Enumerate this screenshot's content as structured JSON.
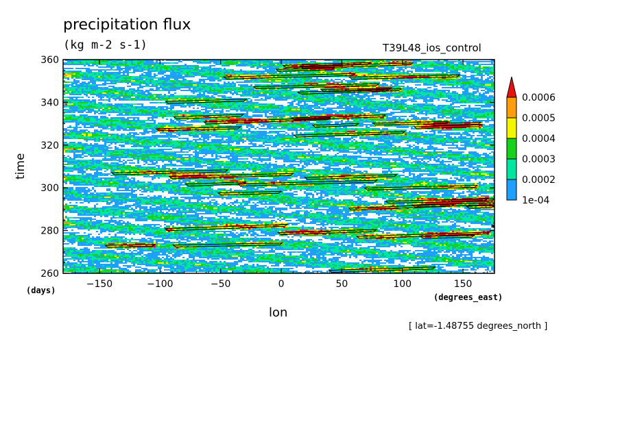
{
  "chart_data": {
    "type": "heatmap",
    "title": "precipitation flux",
    "units": "(kg m-2 s-1)",
    "run_label": "T39L48_ios_control",
    "xlabel": "lon",
    "x_units": "(degrees_east)",
    "ylabel": "time",
    "y_units": "(days)",
    "annotation": "[ lat=-1.48755 degrees_north ]",
    "xlim": [
      -180,
      176
    ],
    "ylim": [
      260,
      360
    ],
    "x_ticks": [
      -150,
      -100,
      -50,
      0,
      50,
      100,
      150
    ],
    "y_ticks": [
      260,
      280,
      300,
      320,
      340,
      360
    ],
    "colorbar": {
      "levels": [
        "1e-04",
        "0.0002",
        "0.0003",
        "0.0004",
        "0.0005",
        "0.0006"
      ],
      "colors": [
        "#1fa0ff",
        "#00e6a0",
        "#16d21a",
        "#f5f500",
        "#ff9e0c",
        "#e81010"
      ],
      "extend": "max"
    }
  }
}
